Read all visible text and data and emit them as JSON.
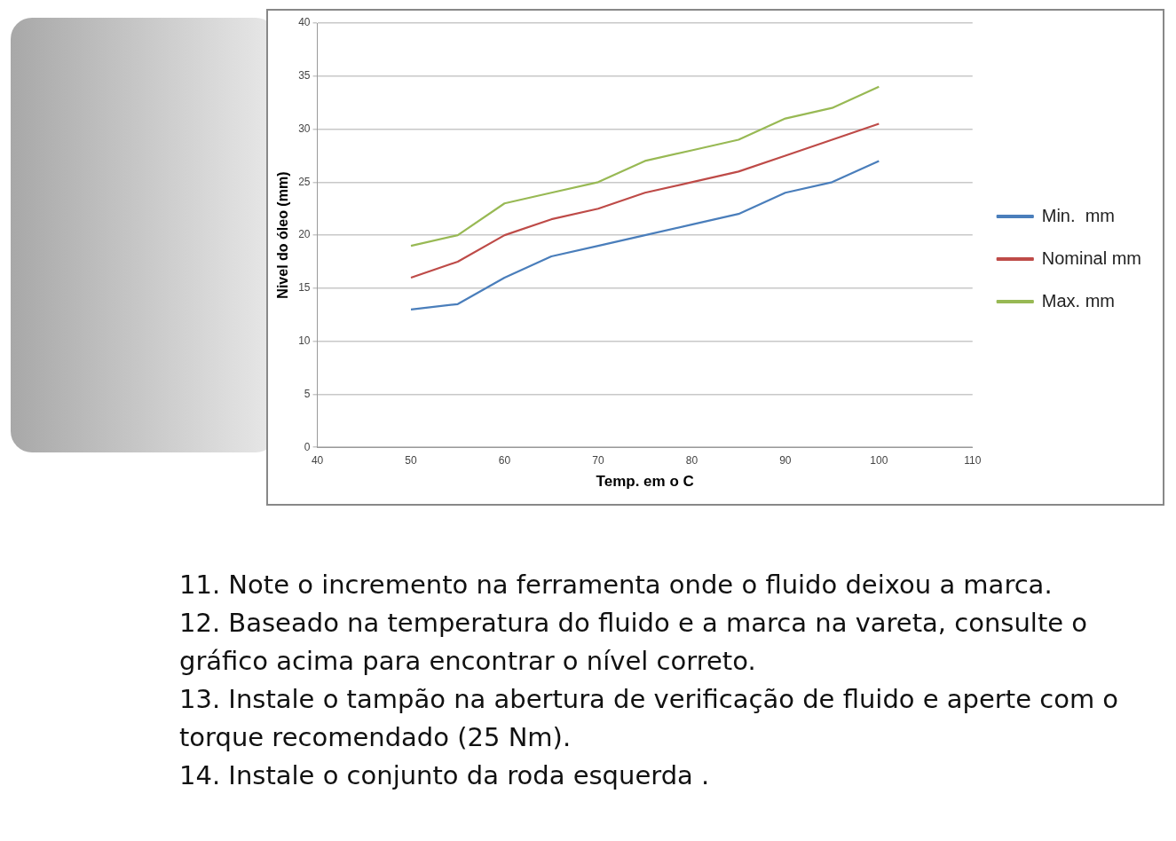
{
  "chart_data": {
    "type": "line",
    "xlabel": "Temp. em o C",
    "ylabel": "Nivel do óleo (mm)",
    "x": [
      50,
      55,
      60,
      65,
      70,
      75,
      80,
      85,
      90,
      95,
      100
    ],
    "series": [
      {
        "name": "Min.  mm",
        "color": "#4a7ebb",
        "values": [
          13,
          13.5,
          16,
          18,
          19,
          20,
          21,
          22,
          24,
          25,
          27
        ]
      },
      {
        "name": "Nominal mm",
        "color": "#be4b48",
        "values": [
          16,
          17.5,
          20,
          21.5,
          22.5,
          24,
          25,
          26,
          27.5,
          29,
          30.5
        ]
      },
      {
        "name": "Max. mm",
        "color": "#98b954",
        "values": [
          19,
          20,
          23,
          24,
          25,
          27,
          28,
          29,
          31,
          32,
          34
        ]
      }
    ],
    "xlim": [
      40,
      110
    ],
    "xticks": [
      40,
      50,
      60,
      70,
      80,
      90,
      100,
      110
    ],
    "ylim": [
      0,
      40
    ],
    "yticks": [
      0,
      5,
      10,
      15,
      20,
      25,
      30,
      35,
      40
    ],
    "grid": "y",
    "legend": "right",
    "marker": "none",
    "line_style": "solid",
    "annotations": [
      "11. Note o incremento na ferramenta onde o fluido deixou a marca.",
      "12. Baseado na temperatura do fluido e a marca na vareta, consulte o gráfico acima para encontrar o nível correto.",
      "13. Instale o tampão na abertura de verificação de fluido e aperte com o torque recomendado (25 Nm).",
      "14. Instale o conjunto da roda esquerda ."
    ]
  }
}
